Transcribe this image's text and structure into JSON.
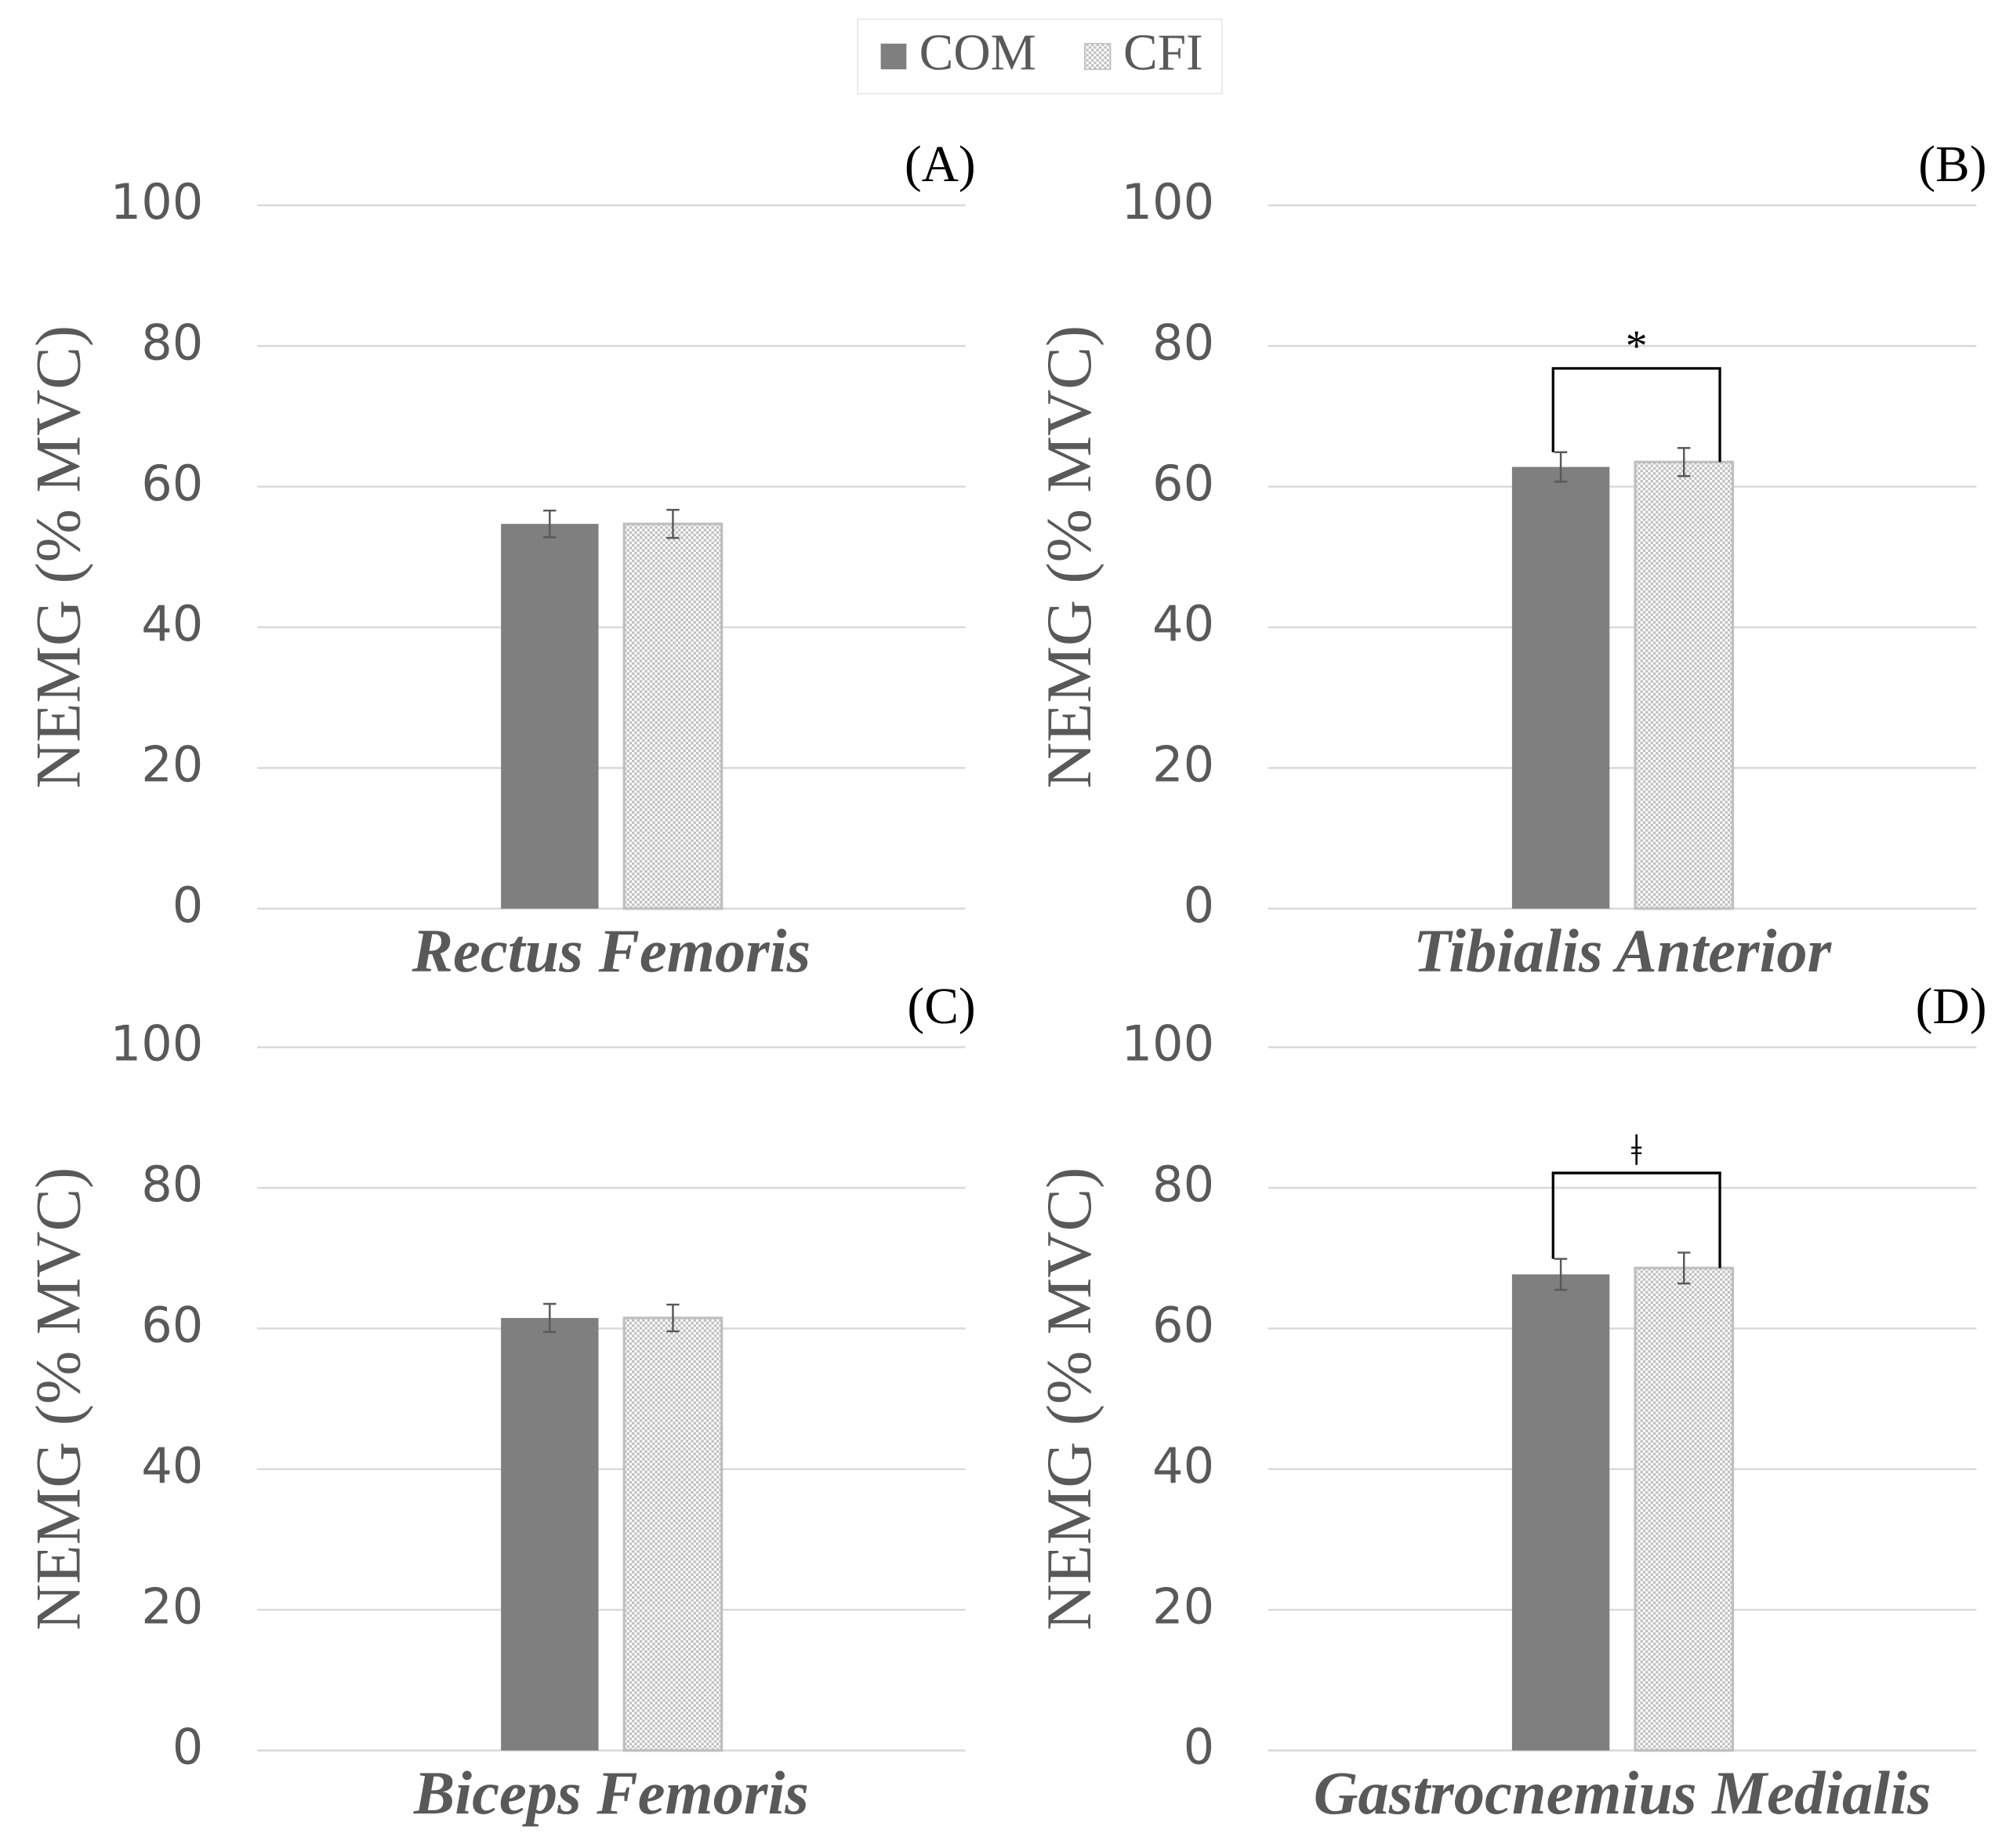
{
  "legend": [
    {
      "name": "COM",
      "color": "#7f7f7f",
      "pattern": "solid"
    },
    {
      "name": "CFI",
      "color": "#bfbfbf",
      "pattern": "checker"
    }
  ],
  "chart_data": [
    {
      "type": "bar",
      "panel_label": "(A)",
      "ylabel": "NEMG (% MVC)",
      "categories": [
        "Rectus Femoris"
      ],
      "series": [
        {
          "values": [
            54.7
          ],
          "errors": [
            1.9
          ]
        },
        {
          "values": [
            54.7
          ],
          "errors": [
            2.0
          ]
        }
      ],
      "ylim": [
        0,
        100
      ],
      "yticks": [
        0,
        20,
        40,
        60,
        80,
        100
      ],
      "grid": true
    },
    {
      "type": "bar",
      "panel_label": "(B)",
      "ylabel": "NEMG (% MVC)",
      "categories": [
        "Tibialis Anterior"
      ],
      "series": [
        {
          "values": [
            62.8
          ],
          "errors": [
            2.1
          ]
        },
        {
          "values": [
            63.5
          ],
          "errors": [
            2.0
          ]
        }
      ],
      "ylim": [
        0,
        100
      ],
      "yticks": [
        0,
        20,
        40,
        60,
        80,
        100
      ],
      "grid": true,
      "annotation": "*"
    },
    {
      "type": "bar",
      "panel_label": "(C)",
      "ylabel": "NEMG (% MVC)",
      "categories": [
        "Biceps Femoris"
      ],
      "series": [
        {
          "values": [
            61.5
          ],
          "errors": [
            2.0
          ]
        },
        {
          "values": [
            61.5
          ],
          "errors": [
            1.9
          ]
        }
      ],
      "ylim": [
        0,
        100
      ],
      "yticks": [
        0,
        20,
        40,
        60,
        80,
        100
      ],
      "grid": true
    },
    {
      "type": "bar",
      "panel_label": "(D)",
      "ylabel": "NEMG (% MVC)",
      "categories": [
        "Gastrocnemius Medialis"
      ],
      "series": [
        {
          "values": [
            67.7
          ],
          "errors": [
            2.2
          ]
        },
        {
          "values": [
            68.6
          ],
          "errors": [
            2.2
          ]
        }
      ],
      "ylim": [
        0,
        100
      ],
      "yticks": [
        0,
        20,
        40,
        60,
        80,
        100
      ],
      "grid": true,
      "annotation": "ǂ"
    }
  ]
}
